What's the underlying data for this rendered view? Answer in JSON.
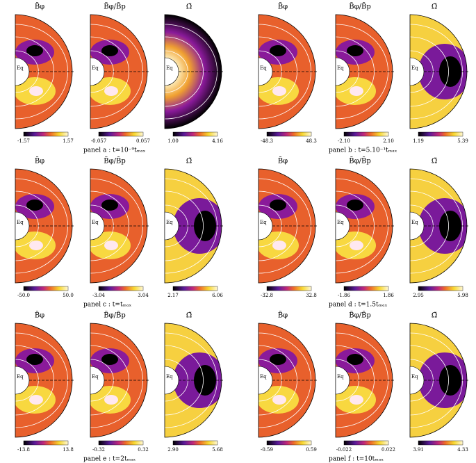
{
  "equator_label": "Eq",
  "plot_titles": [
    "B̃φ",
    "B̃φ/B̃p",
    "Ω̃"
  ],
  "panels": [
    {
      "label": "panel a : t=10⁻⁹tₘₐₓ",
      "colorbars": [
        [
          "-1.57",
          "1.57"
        ],
        [
          "-0.057",
          "0.057"
        ],
        [
          "1.00",
          "4.16"
        ]
      ]
    },
    {
      "label": "panel b : t=5.10⁻¹tₘₐₓ",
      "colorbars": [
        [
          "-48.3",
          "48.3"
        ],
        [
          "-2.10",
          "2.10"
        ],
        [
          "1.19",
          "5.39"
        ]
      ]
    },
    {
      "label": "panel c : t=tₘₐₓ",
      "colorbars": [
        [
          "-50.0",
          "50.0"
        ],
        [
          "-3.04",
          "3.04"
        ],
        [
          "2.17",
          "6.06"
        ]
      ]
    },
    {
      "label": "panel d : t=1.5tₘₐₓ",
      "colorbars": [
        [
          "-32.8",
          "32.8"
        ],
        [
          "-1.86",
          "1.86"
        ],
        [
          "2.95",
          "5.98"
        ]
      ]
    },
    {
      "label": "panel e : t=2tₘₐₓ",
      "colorbars": [
        [
          "-13.8",
          "13.8"
        ],
        [
          "-0.32",
          "0.32"
        ],
        [
          "2.90",
          "5.68"
        ]
      ]
    },
    {
      "label": "panel f : t=10tₘₐₓ",
      "colorbars": [
        [
          "-0.59",
          "0.59"
        ],
        [
          "-0.022",
          "0.022"
        ],
        [
          "3.91",
          "4.33"
        ]
      ]
    }
  ]
}
